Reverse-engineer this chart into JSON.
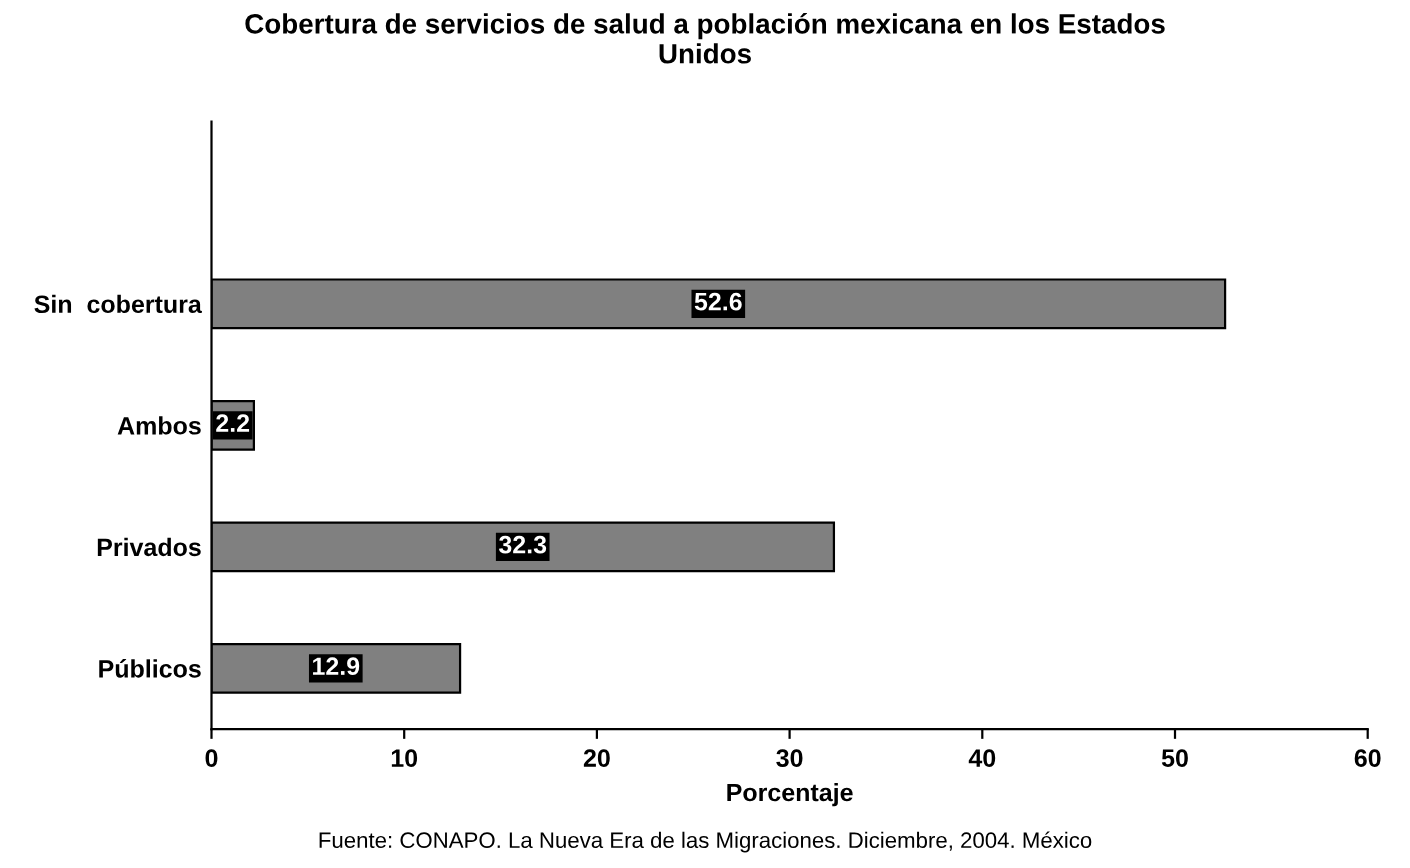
{
  "chart_data": {
    "type": "bar",
    "orientation": "horizontal",
    "title": "Cobertura de servicios de salud a población mexicana en los Estados\nUnidos",
    "xlabel": "Porcentaje",
    "categories": [
      null,
      "Sin  cobertura",
      "Ambos",
      "Privados",
      "Públicos"
    ],
    "values": [
      null,
      52.6,
      2.2,
      32.3,
      12.9
    ],
    "color": "#808080",
    "data_labels": true,
    "xlim": [
      0,
      60
    ],
    "xticks": [
      0,
      10,
      20,
      30,
      40,
      50,
      60
    ],
    "grid": false,
    "annotations": [
      "Fuente: CONAPO. La Nueva Era de las Migraciones. Diciembre, 2004. México"
    ]
  }
}
